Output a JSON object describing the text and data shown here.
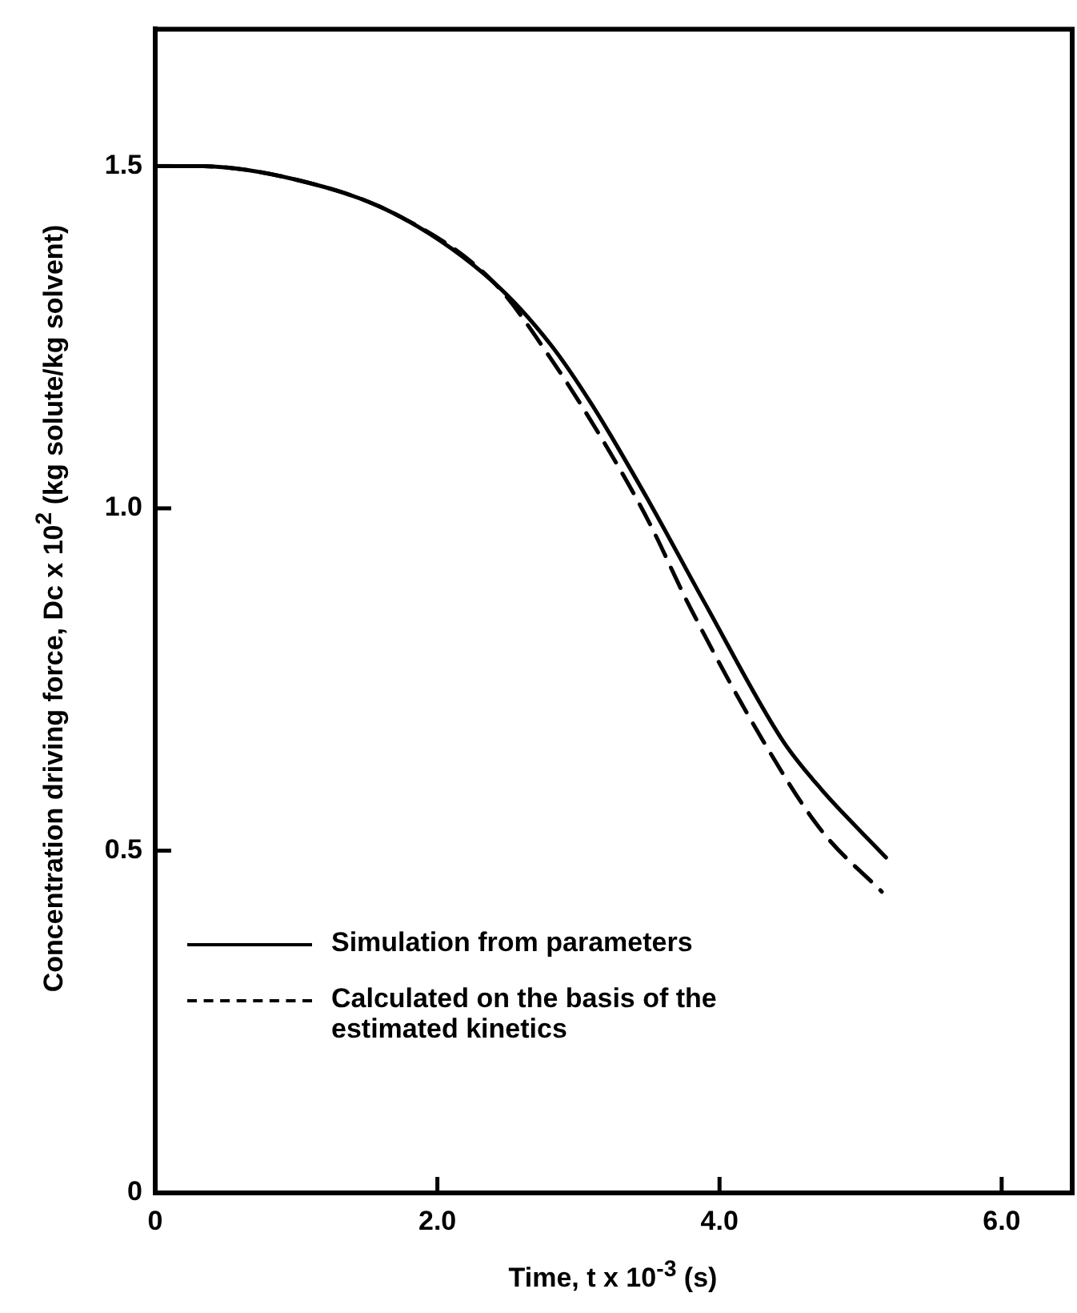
{
  "chart_data": {
    "type": "line",
    "xlabel": "Time, t x 10$^{-3}$ (s)",
    "ylabel": "Concentration driving force, Dc x 10$^{2}$ (kg solute/kg solvent)",
    "xlim": [
      0,
      6.5
    ],
    "xticks": [
      0,
      {
        "value": 2,
        "label": "2.0"
      },
      {
        "value": 4,
        "label": "4.0"
      },
      {
        "value": 6,
        "label": "6.0"
      }
    ],
    "ylim": [
      0,
      1.7
    ],
    "yticks": [
      0,
      0.5,
      {
        "value": 1,
        "label": "1.0"
      },
      1.5
    ],
    "grid": false,
    "legend": "bottom left",
    "marker": "none",
    "series": [
      {
        "name": "Simulation from parameters",
        "color": "#000000",
        "line_style": "solid",
        "x": [
          0,
          0.3,
          1.0,
          1.7,
          2.4,
          2.8,
          3.1,
          3.5,
          3.9,
          4.45,
          4.72,
          5.18
        ],
        "values": [
          1.5,
          1.5,
          1.48,
          1.43,
          1.33,
          1.24,
          1.15,
          1.01,
          0.86,
          0.66,
          0.59,
          0.49
        ]
      },
      {
        "name": "Calculated on the basis of the estimated kinetics",
        "color": "#000000",
        "line_style": "dashed",
        "x": [
          0,
          0.3,
          1.0,
          1.7,
          2.4,
          2.8,
          3.2,
          3.5,
          3.78,
          4.31,
          4.72,
          5.15
        ],
        "values": [
          1.5,
          1.5,
          1.48,
          1.43,
          1.33,
          1.22,
          1.09,
          0.98,
          0.86,
          0.66,
          0.53,
          0.44
        ]
      }
    ]
  }
}
